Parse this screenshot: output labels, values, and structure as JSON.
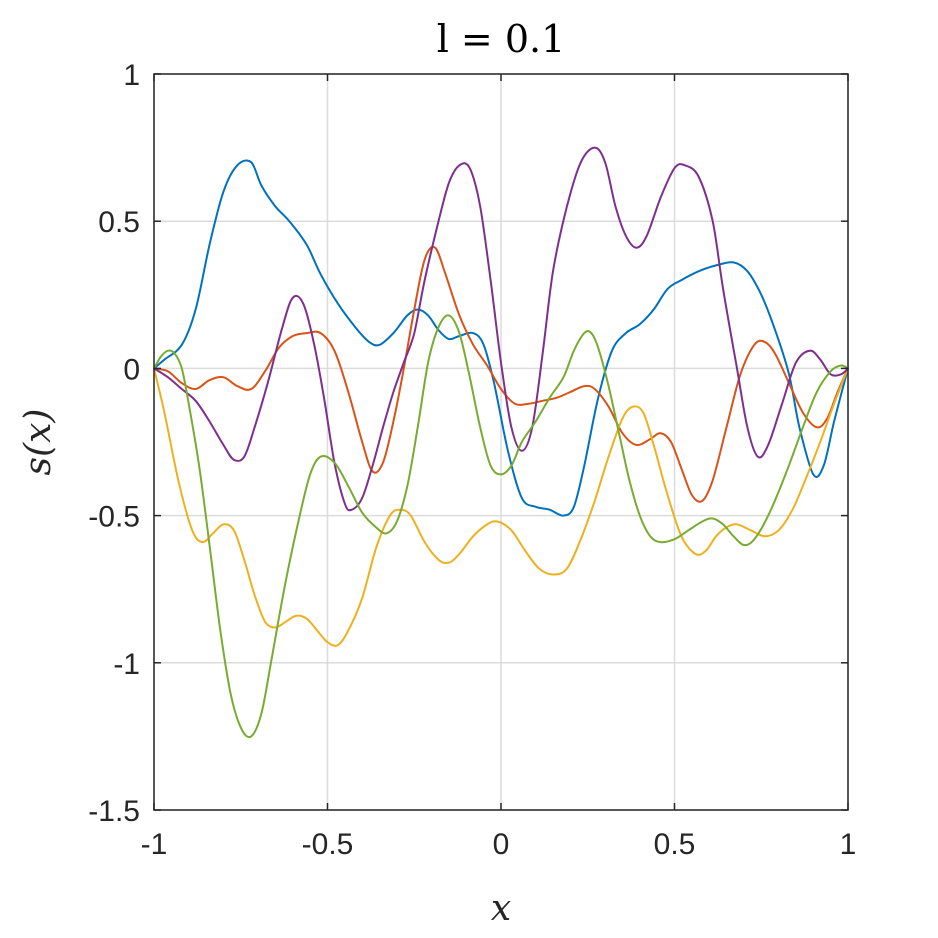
{
  "chart_data": {
    "type": "line",
    "title": "l = 0.1",
    "xlabel": "x",
    "ylabel": "s(x)",
    "xlim": [
      -1,
      1
    ],
    "ylim": [
      -1.5,
      1
    ],
    "grid": true,
    "legend": "none",
    "x_ticks": [
      -1,
      -0.5,
      0,
      0.5,
      1
    ],
    "x_tick_labels": [
      "-1",
      "-0.5",
      "0",
      "0.5",
      "1"
    ],
    "y_ticks": [
      -1.5,
      -1,
      -0.5,
      0,
      0.5,
      1
    ],
    "y_tick_labels": [
      "-1.5",
      "-1",
      "-0.5",
      "0",
      "0.5",
      "1"
    ],
    "series": [
      {
        "color": "#0072BD",
        "points": [
          [
            -1,
            0
          ],
          [
            -0.97,
            0.03
          ],
          [
            -0.92,
            0.08
          ],
          [
            -0.88,
            0.2
          ],
          [
            -0.84,
            0.42
          ],
          [
            -0.8,
            0.6
          ],
          [
            -0.76,
            0.69
          ],
          [
            -0.72,
            0.7
          ],
          [
            -0.69,
            0.62
          ],
          [
            -0.65,
            0.55
          ],
          [
            -0.61,
            0.5
          ],
          [
            -0.56,
            0.42
          ],
          [
            -0.52,
            0.32
          ],
          [
            -0.47,
            0.22
          ],
          [
            -0.42,
            0.14
          ],
          [
            -0.38,
            0.09
          ],
          [
            -0.35,
            0.08
          ],
          [
            -0.31,
            0.12
          ],
          [
            -0.27,
            0.18
          ],
          [
            -0.24,
            0.2
          ],
          [
            -0.21,
            0.18
          ],
          [
            -0.18,
            0.13
          ],
          [
            -0.15,
            0.1
          ],
          [
            -0.12,
            0.11
          ],
          [
            -0.08,
            0.12
          ],
          [
            -0.05,
            0.08
          ],
          [
            -0.02,
            -0.05
          ],
          [
            0.02,
            -0.28
          ],
          [
            0.06,
            -0.44
          ],
          [
            0.1,
            -0.47
          ],
          [
            0.14,
            -0.48
          ],
          [
            0.18,
            -0.5
          ],
          [
            0.21,
            -0.47
          ],
          [
            0.24,
            -0.33
          ],
          [
            0.28,
            -0.1
          ],
          [
            0.32,
            0.06
          ],
          [
            0.36,
            0.12
          ],
          [
            0.4,
            0.15
          ],
          [
            0.44,
            0.2
          ],
          [
            0.48,
            0.27
          ],
          [
            0.52,
            0.3
          ],
          [
            0.57,
            0.33
          ],
          [
            0.62,
            0.35
          ],
          [
            0.67,
            0.36
          ],
          [
            0.71,
            0.33
          ],
          [
            0.75,
            0.25
          ],
          [
            0.79,
            0.13
          ],
          [
            0.83,
            -0.02
          ],
          [
            0.86,
            -0.2
          ],
          [
            0.9,
            -0.36
          ],
          [
            0.93,
            -0.33
          ],
          [
            0.96,
            -0.18
          ],
          [
            1,
            0
          ]
        ]
      },
      {
        "color": "#D95319",
        "points": [
          [
            -1,
            0
          ],
          [
            -0.96,
            -0.01
          ],
          [
            -0.92,
            -0.05
          ],
          [
            -0.88,
            -0.07
          ],
          [
            -0.84,
            -0.04
          ],
          [
            -0.8,
            -0.03
          ],
          [
            -0.76,
            -0.06
          ],
          [
            -0.72,
            -0.07
          ],
          [
            -0.68,
            -0.01
          ],
          [
            -0.64,
            0.07
          ],
          [
            -0.6,
            0.11
          ],
          [
            -0.56,
            0.12
          ],
          [
            -0.52,
            0.12
          ],
          [
            -0.48,
            0.06
          ],
          [
            -0.44,
            -0.08
          ],
          [
            -0.4,
            -0.25
          ],
          [
            -0.37,
            -0.35
          ],
          [
            -0.34,
            -0.32
          ],
          [
            -0.31,
            -0.18
          ],
          [
            -0.28,
            0
          ],
          [
            -0.25,
            0.2
          ],
          [
            -0.22,
            0.37
          ],
          [
            -0.19,
            0.41
          ],
          [
            -0.16,
            0.32
          ],
          [
            -0.12,
            0.18
          ],
          [
            -0.08,
            0.08
          ],
          [
            -0.04,
            0.01
          ],
          [
            0,
            -0.07
          ],
          [
            0.04,
            -0.12
          ],
          [
            0.08,
            -0.12
          ],
          [
            0.12,
            -0.11
          ],
          [
            0.16,
            -0.1
          ],
          [
            0.2,
            -0.08
          ],
          [
            0.24,
            -0.06
          ],
          [
            0.27,
            -0.07
          ],
          [
            0.31,
            -0.13
          ],
          [
            0.35,
            -0.22
          ],
          [
            0.39,
            -0.26
          ],
          [
            0.43,
            -0.24
          ],
          [
            0.46,
            -0.22
          ],
          [
            0.49,
            -0.25
          ],
          [
            0.52,
            -0.34
          ],
          [
            0.55,
            -0.43
          ],
          [
            0.58,
            -0.45
          ],
          [
            0.61,
            -0.38
          ],
          [
            0.65,
            -0.2
          ],
          [
            0.69,
            -0.02
          ],
          [
            0.73,
            0.08
          ],
          [
            0.76,
            0.09
          ],
          [
            0.79,
            0.05
          ],
          [
            0.83,
            -0.05
          ],
          [
            0.87,
            -0.15
          ],
          [
            0.91,
            -0.2
          ],
          [
            0.94,
            -0.17
          ],
          [
            0.97,
            -0.08
          ],
          [
            1,
            0
          ]
        ]
      },
      {
        "color": "#EDB120",
        "points": [
          [
            -1,
            0
          ],
          [
            -0.97,
            -0.15
          ],
          [
            -0.93,
            -0.38
          ],
          [
            -0.89,
            -0.55
          ],
          [
            -0.86,
            -0.59
          ],
          [
            -0.83,
            -0.56
          ],
          [
            -0.8,
            -0.53
          ],
          [
            -0.77,
            -0.55
          ],
          [
            -0.74,
            -0.65
          ],
          [
            -0.71,
            -0.77
          ],
          [
            -0.68,
            -0.86
          ],
          [
            -0.65,
            -0.88
          ],
          [
            -0.62,
            -0.86
          ],
          [
            -0.59,
            -0.84
          ],
          [
            -0.56,
            -0.85
          ],
          [
            -0.53,
            -0.89
          ],
          [
            -0.5,
            -0.93
          ],
          [
            -0.47,
            -0.94
          ],
          [
            -0.44,
            -0.89
          ],
          [
            -0.4,
            -0.78
          ],
          [
            -0.36,
            -0.61
          ],
          [
            -0.32,
            -0.5
          ],
          [
            -0.29,
            -0.48
          ],
          [
            -0.26,
            -0.5
          ],
          [
            -0.22,
            -0.59
          ],
          [
            -0.18,
            -0.65
          ],
          [
            -0.15,
            -0.66
          ],
          [
            -0.12,
            -0.63
          ],
          [
            -0.08,
            -0.57
          ],
          [
            -0.04,
            -0.53
          ],
          [
            -0.01,
            -0.52
          ],
          [
            0.03,
            -0.55
          ],
          [
            0.07,
            -0.62
          ],
          [
            0.11,
            -0.68
          ],
          [
            0.15,
            -0.7
          ],
          [
            0.19,
            -0.68
          ],
          [
            0.23,
            -0.58
          ],
          [
            0.27,
            -0.45
          ],
          [
            0.31,
            -0.3
          ],
          [
            0.35,
            -0.17
          ],
          [
            0.38,
            -0.13
          ],
          [
            0.41,
            -0.15
          ],
          [
            0.44,
            -0.26
          ],
          [
            0.48,
            -0.43
          ],
          [
            0.52,
            -0.57
          ],
          [
            0.56,
            -0.63
          ],
          [
            0.59,
            -0.62
          ],
          [
            0.62,
            -0.57
          ],
          [
            0.65,
            -0.54
          ],
          [
            0.68,
            -0.53
          ],
          [
            0.72,
            -0.55
          ],
          [
            0.76,
            -0.57
          ],
          [
            0.8,
            -0.55
          ],
          [
            0.84,
            -0.48
          ],
          [
            0.88,
            -0.37
          ],
          [
            0.92,
            -0.25
          ],
          [
            0.96,
            -0.12
          ],
          [
            1,
            0
          ]
        ]
      },
      {
        "color": "#7E2F8E",
        "points": [
          [
            -1,
            0
          ],
          [
            -0.96,
            -0.03
          ],
          [
            -0.92,
            -0.07
          ],
          [
            -0.88,
            -0.11
          ],
          [
            -0.84,
            -0.18
          ],
          [
            -0.8,
            -0.26
          ],
          [
            -0.77,
            -0.31
          ],
          [
            -0.74,
            -0.3
          ],
          [
            -0.71,
            -0.2
          ],
          [
            -0.67,
            -0.04
          ],
          [
            -0.63,
            0.14
          ],
          [
            -0.6,
            0.24
          ],
          [
            -0.57,
            0.22
          ],
          [
            -0.54,
            0.09
          ],
          [
            -0.51,
            -0.1
          ],
          [
            -0.48,
            -0.32
          ],
          [
            -0.45,
            -0.46
          ],
          [
            -0.43,
            -0.48
          ],
          [
            -0.4,
            -0.44
          ],
          [
            -0.37,
            -0.33
          ],
          [
            -0.34,
            -0.2
          ],
          [
            -0.31,
            -0.08
          ],
          [
            -0.28,
            0.02
          ],
          [
            -0.25,
            0.12
          ],
          [
            -0.22,
            0.3
          ],
          [
            -0.18,
            0.5
          ],
          [
            -0.15,
            0.63
          ],
          [
            -0.12,
            0.69
          ],
          [
            -0.09,
            0.68
          ],
          [
            -0.06,
            0.55
          ],
          [
            -0.03,
            0.3
          ],
          [
            0,
            0.02
          ],
          [
            0.03,
            -0.2
          ],
          [
            0.06,
            -0.28
          ],
          [
            0.09,
            -0.2
          ],
          [
            0.12,
            0.05
          ],
          [
            0.15,
            0.33
          ],
          [
            0.19,
            0.55
          ],
          [
            0.23,
            0.7
          ],
          [
            0.27,
            0.75
          ],
          [
            0.3,
            0.7
          ],
          [
            0.33,
            0.55
          ],
          [
            0.36,
            0.45
          ],
          [
            0.39,
            0.41
          ],
          [
            0.42,
            0.45
          ],
          [
            0.46,
            0.58
          ],
          [
            0.5,
            0.68
          ],
          [
            0.53,
            0.69
          ],
          [
            0.57,
            0.65
          ],
          [
            0.61,
            0.5
          ],
          [
            0.64,
            0.27
          ],
          [
            0.68,
            0
          ],
          [
            0.71,
            -0.2
          ],
          [
            0.74,
            -0.3
          ],
          [
            0.77,
            -0.26
          ],
          [
            0.81,
            -0.12
          ],
          [
            0.85,
            0.02
          ],
          [
            0.89,
            0.06
          ],
          [
            0.92,
            0.03
          ],
          [
            0.95,
            -0.02
          ],
          [
            0.98,
            -0.02
          ],
          [
            1,
            0
          ]
        ]
      },
      {
        "color": "#77AC30",
        "points": [
          [
            -1,
            0
          ],
          [
            -0.98,
            0.04
          ],
          [
            -0.96,
            0.06
          ],
          [
            -0.94,
            0.05
          ],
          [
            -0.92,
            0
          ],
          [
            -0.9,
            -0.12
          ],
          [
            -0.87,
            -0.33
          ],
          [
            -0.84,
            -0.6
          ],
          [
            -0.81,
            -0.88
          ],
          [
            -0.78,
            -1.1
          ],
          [
            -0.75,
            -1.22
          ],
          [
            -0.72,
            -1.25
          ],
          [
            -0.69,
            -1.17
          ],
          [
            -0.66,
            -0.98
          ],
          [
            -0.62,
            -0.72
          ],
          [
            -0.58,
            -0.5
          ],
          [
            -0.55,
            -0.36
          ],
          [
            -0.52,
            -0.3
          ],
          [
            -0.48,
            -0.32
          ],
          [
            -0.44,
            -0.4
          ],
          [
            -0.4,
            -0.49
          ],
          [
            -0.36,
            -0.54
          ],
          [
            -0.33,
            -0.56
          ],
          [
            -0.3,
            -0.52
          ],
          [
            -0.27,
            -0.4
          ],
          [
            -0.24,
            -0.2
          ],
          [
            -0.21,
            0.02
          ],
          [
            -0.18,
            0.14
          ],
          [
            -0.15,
            0.18
          ],
          [
            -0.12,
            0.12
          ],
          [
            -0.09,
            -0.03
          ],
          [
            -0.06,
            -0.2
          ],
          [
            -0.03,
            -0.33
          ],
          [
            0,
            -0.36
          ],
          [
            0.03,
            -0.33
          ],
          [
            0.06,
            -0.25
          ],
          [
            0.1,
            -0.18
          ],
          [
            0.14,
            -0.1
          ],
          [
            0.18,
            -0.03
          ],
          [
            0.21,
            0.06
          ],
          [
            0.24,
            0.12
          ],
          [
            0.26,
            0.12
          ],
          [
            0.28,
            0.07
          ],
          [
            0.31,
            -0.06
          ],
          [
            0.34,
            -0.22
          ],
          [
            0.37,
            -0.38
          ],
          [
            0.4,
            -0.5
          ],
          [
            0.43,
            -0.57
          ],
          [
            0.46,
            -0.59
          ],
          [
            0.5,
            -0.58
          ],
          [
            0.54,
            -0.55
          ],
          [
            0.58,
            -0.52
          ],
          [
            0.61,
            -0.51
          ],
          [
            0.64,
            -0.53
          ],
          [
            0.67,
            -0.57
          ],
          [
            0.7,
            -0.6
          ],
          [
            0.73,
            -0.58
          ],
          [
            0.77,
            -0.5
          ],
          [
            0.82,
            -0.36
          ],
          [
            0.87,
            -0.2
          ],
          [
            0.91,
            -0.08
          ],
          [
            0.95,
            -0.01
          ],
          [
            0.98,
            0.01
          ],
          [
            1,
            0
          ]
        ]
      }
    ]
  }
}
